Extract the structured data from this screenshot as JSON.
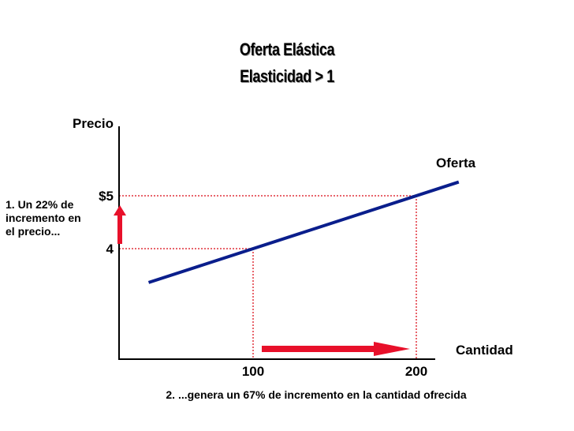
{
  "slide": {
    "title_line_1": "Oferta Elástica",
    "title_line_2": "Elasticidad > 1",
    "note_left": "1. Un 22% de incremento en el precio...",
    "note_bottom": "2. ...genera un 67% de incremento en la cantidad ofrecida"
  },
  "chart_data": {
    "type": "line",
    "title": "",
    "xlabel": "Cantidad",
    "ylabel": "Precio",
    "series": [
      {
        "name": "Oferta",
        "points": [
          {
            "x": 100,
            "y": 4
          },
          {
            "x": 200,
            "y": 5
          }
        ]
      }
    ],
    "x_ticks": [
      {
        "value": 100,
        "label": "100"
      },
      {
        "value": 200,
        "label": "200"
      }
    ],
    "y_ticks": [
      {
        "value": 5,
        "label": "$5"
      },
      {
        "value": 4,
        "label": "4"
      }
    ],
    "reference_points": [
      {
        "x": 100,
        "y": 4
      },
      {
        "x": 200,
        "y": 5
      }
    ],
    "price_change_pct": 22,
    "quantity_change_pct": 67,
    "grid": false,
    "colors": {
      "supply_line": "#0a1e8c",
      "guides": "#e0323c",
      "arrows": "#e8102a",
      "axes": "#000000"
    }
  }
}
